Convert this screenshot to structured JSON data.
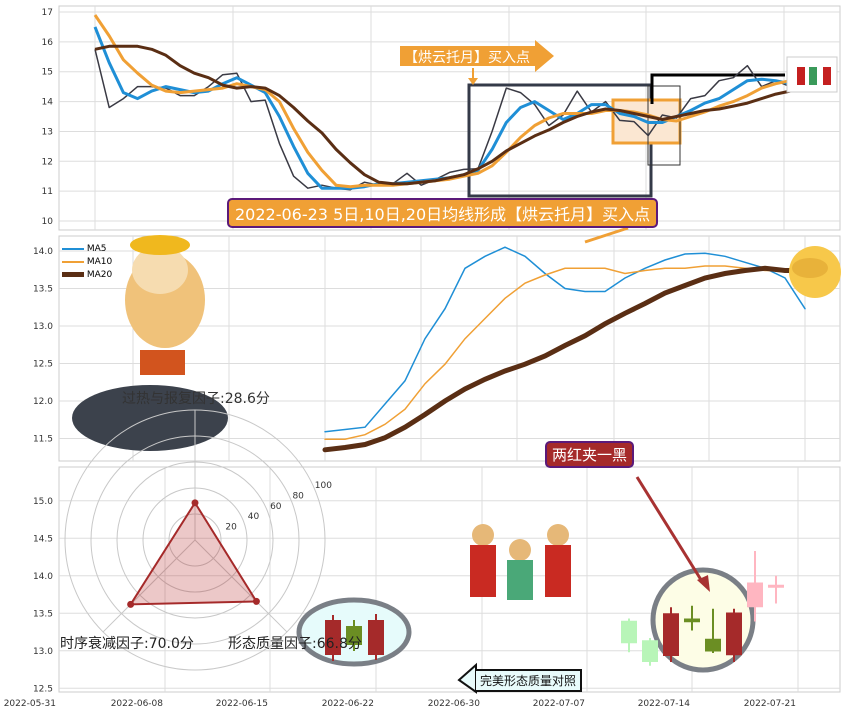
{
  "colors": {
    "close": "#3a3a44",
    "ma5": "#1f8fd6",
    "ma10": "#f0a035",
    "ma20": "#5a2e14",
    "up": "#a52a2a",
    "down": "#6b8e23",
    "annot_bg": "#f0a035",
    "annot_border": "#5b1a7a"
  },
  "chart_data": [
    {
      "type": "line",
      "panel": "top",
      "ylim": [
        9.7,
        17.2
      ],
      "yticks": [
        10,
        11,
        12,
        13,
        14,
        15,
        16,
        17
      ],
      "grid": true,
      "series": [
        {
          "key": "close",
          "values": [
            15.75,
            13.8,
            14.1,
            14.5,
            14.5,
            14.45,
            14.2,
            14.2,
            14.5,
            14.9,
            14.95,
            14.0,
            14.05,
            12.6,
            11.5,
            11.1,
            11.2,
            11.1,
            11.05,
            11.3,
            11.2,
            11.25,
            11.6,
            11.2,
            11.39,
            11.63,
            11.73,
            11.75,
            13.0,
            14.45,
            14.3,
            13.9,
            13.2,
            13.55,
            14.35,
            13.65,
            14.0,
            13.37,
            13.33,
            12.86,
            13.55,
            13.45,
            14.1,
            14.2,
            14.7,
            14.8,
            15.2,
            14.5,
            14.7,
            14.5
          ]
        },
        {
          "key": "ma5",
          "values": [
            16.5,
            15.3,
            14.3,
            14.1,
            14.35,
            14.5,
            14.4,
            14.3,
            14.35,
            14.6,
            14.8,
            14.55,
            14.3,
            13.5,
            12.5,
            11.6,
            11.1,
            11.1,
            11.1,
            11.15,
            11.25,
            11.25,
            11.3,
            11.35,
            11.4,
            11.45,
            11.55,
            11.7,
            12.4,
            13.3,
            13.8,
            14.0,
            13.7,
            13.4,
            13.6,
            13.9,
            13.9,
            13.6,
            13.5,
            13.3,
            13.3,
            13.5,
            13.7,
            13.95,
            14.1,
            14.4,
            14.7,
            14.75,
            14.7,
            14.6
          ]
        },
        {
          "key": "ma10",
          "values": [
            16.9,
            16.2,
            15.4,
            14.95,
            14.55,
            14.35,
            14.3,
            14.35,
            14.4,
            14.45,
            14.6,
            14.5,
            14.4,
            14.0,
            13.1,
            12.3,
            11.7,
            11.2,
            11.15,
            11.2,
            11.2,
            11.2,
            11.25,
            11.3,
            11.35,
            11.4,
            11.5,
            11.6,
            11.85,
            12.3,
            12.8,
            13.2,
            13.45,
            13.6,
            13.6,
            13.6,
            13.7,
            13.7,
            13.65,
            13.55,
            13.4,
            13.35,
            13.5,
            13.65,
            13.85,
            14.0,
            14.2,
            14.45,
            14.6,
            14.7
          ]
        },
        {
          "key": "ma20",
          "values": [
            15.75,
            15.85,
            15.85,
            15.85,
            15.75,
            15.55,
            15.2,
            14.95,
            14.8,
            14.55,
            14.45,
            14.5,
            14.45,
            14.2,
            13.8,
            13.35,
            12.95,
            12.4,
            11.95,
            11.55,
            11.3,
            11.25,
            11.25,
            11.3,
            11.35,
            11.45,
            11.55,
            11.75,
            12.0,
            12.35,
            12.6,
            12.85,
            13.05,
            13.3,
            13.5,
            13.65,
            13.75,
            13.7,
            13.6,
            13.5,
            13.4,
            13.5,
            13.6,
            13.7,
            13.75,
            13.85,
            13.95,
            14.1,
            14.25,
            14.35
          ]
        }
      ],
      "annotations": {
        "buy_arrow": "【烘云托月】买入点",
        "buy_banner": "2022-06-23 5日,10日,20日均线形成【烘云托月】买入点"
      }
    },
    {
      "type": "line",
      "panel": "middle",
      "ylim": [
        11.2,
        14.2
      ],
      "yticks": [
        "11.5",
        "12.0",
        "12.5",
        "13.0",
        "13.5",
        "14.0"
      ],
      "grid": true,
      "legend": "top-left",
      "series": [
        {
          "key": "ma5",
          "name": "MA5",
          "values": [
            11.59,
            11.62,
            11.65,
            11.96,
            12.27,
            12.83,
            13.23,
            13.77,
            13.93,
            14.05,
            13.93,
            13.7,
            13.5,
            13.46,
            13.46,
            13.64,
            13.77,
            13.88,
            13.96,
            13.97,
            13.93,
            13.85,
            13.77,
            13.64,
            13.23
          ]
        },
        {
          "key": "ma10",
          "name": "MA10",
          "values": [
            11.49,
            11.49,
            11.55,
            11.69,
            11.89,
            12.23,
            12.49,
            12.83,
            13.1,
            13.37,
            13.57,
            13.68,
            13.77,
            13.77,
            13.77,
            13.7,
            13.74,
            13.77,
            13.77,
            13.8,
            13.8,
            13.77,
            13.74,
            13.74,
            13.74
          ]
        },
        {
          "key": "ma20",
          "name": "MA20",
          "values": [
            11.35,
            11.38,
            11.42,
            11.51,
            11.65,
            11.82,
            12.0,
            12.16,
            12.29,
            12.4,
            12.49,
            12.6,
            12.74,
            12.87,
            13.03,
            13.17,
            13.3,
            13.44,
            13.54,
            13.64,
            13.7,
            13.74,
            13.77,
            13.74,
            13.74
          ]
        }
      ]
    },
    {
      "type": "candlestick",
      "panel": "bottom",
      "ylim": [
        12.45,
        15.45
      ],
      "yticks": [
        "12.5",
        "13.0",
        "13.5",
        "14.0",
        "14.5",
        "15.0"
      ],
      "grid": true,
      "xticks": [
        "2022-05-31",
        "2022-06-08",
        "2022-06-15",
        "2022-06-22",
        "2022-06-30",
        "2022-07-07",
        "2022-07-14",
        "2022-07-21"
      ],
      "candles": [
        {
          "date": "2022-07-11",
          "open": 13.4,
          "close": 13.1,
          "high": 13.43,
          "low": 12.98,
          "faded": true
        },
        {
          "date": "2022-07-12",
          "open": 13.14,
          "close": 12.85,
          "high": 13.17,
          "low": 12.8,
          "faded": true
        },
        {
          "date": "2022-07-13",
          "open": 12.93,
          "close": 13.5,
          "high": 13.58,
          "low": 12.85
        },
        {
          "date": "2022-07-14",
          "open": 13.43,
          "close": 13.38,
          "high": 13.6,
          "low": 13.27
        },
        {
          "date": "2022-07-15",
          "open": 13.16,
          "close": 12.99,
          "high": 13.56,
          "low": 12.97
        },
        {
          "date": "2022-07-18",
          "open": 12.94,
          "close": 13.51,
          "high": 13.56,
          "low": 12.85
        },
        {
          "date": "2022-07-19",
          "open": 13.58,
          "close": 13.91,
          "high": 14.33,
          "low": 13.39,
          "faded": true
        },
        {
          "date": "2022-07-20",
          "open": 13.86,
          "close": 13.88,
          "high": 14.0,
          "low": 13.63,
          "faded": true
        }
      ],
      "annotations": {
        "pattern": "两红夹一黑",
        "compare": "完美形态质量对照"
      }
    },
    {
      "type": "radar",
      "rticks": [
        "20",
        "40",
        "60",
        "80",
        "100"
      ],
      "axes": [
        {
          "label": "过热与报复因子:28.6分",
          "value": 28.6
        },
        {
          "label": "时序衰减因子:70.0分",
          "value": 70.0
        },
        {
          "label": "形态质量因子:66.8分",
          "value": 66.8
        }
      ]
    }
  ]
}
